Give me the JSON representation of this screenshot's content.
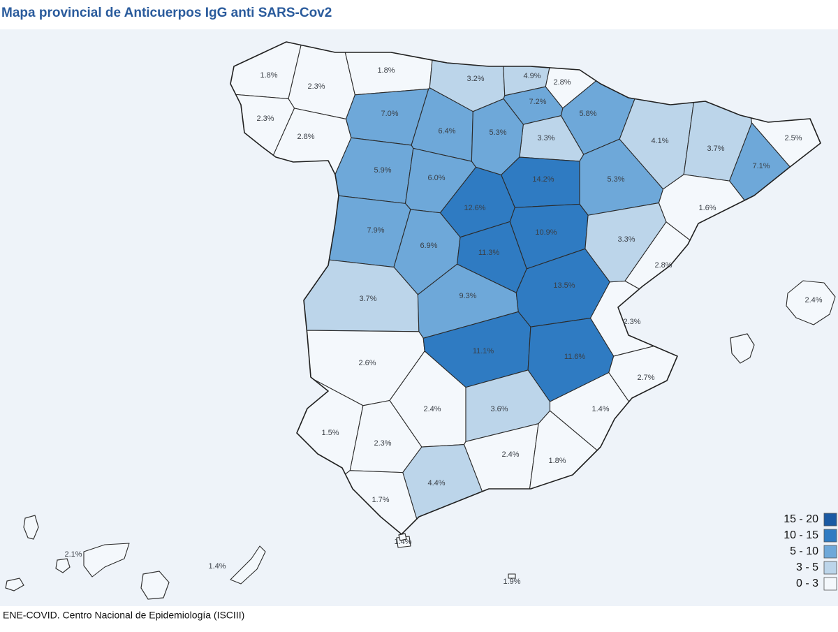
{
  "title": "Mapa provincial de Anticuerpos IgG anti SARS-Cov2",
  "source": "ENE-COVID. Centro Nacional de Epidemiología (ISCIII)",
  "provinces": [
    {
      "label": "1.8%",
      "color": "#f4f8fc"
    },
    {
      "label": "2.3%",
      "color": "#f4f8fc"
    },
    {
      "label": "2.3%",
      "color": "#f4f8fc"
    },
    {
      "label": "2.8%",
      "color": "#f4f8fc"
    },
    {
      "label": "1.8%",
      "color": "#f4f8fc"
    },
    {
      "label": "3.2%",
      "color": "#bcd5ea"
    },
    {
      "label": "4.9%",
      "color": "#bcd5ea"
    },
    {
      "label": "2.8%",
      "color": "#f4f8fc"
    },
    {
      "label": "7.2%",
      "color": "#6ea8d9"
    },
    {
      "label": "5.8%",
      "color": "#6ea8d9"
    },
    {
      "label": "3.3%",
      "color": "#bcd5ea"
    },
    {
      "label": "7.0%",
      "color": "#6ea8d9"
    },
    {
      "label": "6.4%",
      "color": "#6ea8d9"
    },
    {
      "label": "5.3%",
      "color": "#6ea8d9"
    },
    {
      "label": "4.1%",
      "color": "#bcd5ea"
    },
    {
      "label": "3.7%",
      "color": "#bcd5ea"
    },
    {
      "label": "2.5%",
      "color": "#f4f8fc"
    },
    {
      "label": "7.1%",
      "color": "#6ea8d9"
    },
    {
      "label": "5.9%",
      "color": "#6ea8d9"
    },
    {
      "label": "6.0%",
      "color": "#6ea8d9"
    },
    {
      "label": "14.2%",
      "color": "#2f7bc2"
    },
    {
      "label": "5.3%",
      "color": "#6ea8d9"
    },
    {
      "label": "1.6%",
      "color": "#f4f8fc"
    },
    {
      "label": "7.9%",
      "color": "#6ea8d9"
    },
    {
      "label": "12.6%",
      "color": "#2f7bc2"
    },
    {
      "label": "6.9%",
      "color": "#6ea8d9"
    },
    {
      "label": "11.3%",
      "color": "#2f7bc2"
    },
    {
      "label": "10.9%",
      "color": "#2f7bc2"
    },
    {
      "label": "3.3%",
      "color": "#bcd5ea"
    },
    {
      "label": "2.8%",
      "color": "#f4f8fc"
    },
    {
      "label": "3.7%",
      "color": "#bcd5ea"
    },
    {
      "label": "9.3%",
      "color": "#6ea8d9"
    },
    {
      "label": "13.5%",
      "color": "#2f7bc2"
    },
    {
      "label": "2.3%",
      "color": "#f4f8fc"
    },
    {
      "label": "2.6%",
      "color": "#f4f8fc"
    },
    {
      "label": "11.1%",
      "color": "#2f7bc2"
    },
    {
      "label": "11.6%",
      "color": "#2f7bc2"
    },
    {
      "label": "2.7%",
      "color": "#f4f8fc"
    },
    {
      "label": "1.5%",
      "color": "#f4f8fc"
    },
    {
      "label": "2.4%",
      "color": "#f4f8fc"
    },
    {
      "label": "3.6%",
      "color": "#bcd5ea"
    },
    {
      "label": "1.4%",
      "color": "#f4f8fc"
    },
    {
      "label": "2.3%",
      "color": "#f4f8fc"
    },
    {
      "label": "2.4%",
      "color": "#f4f8fc"
    },
    {
      "label": "1.8%",
      "color": "#f4f8fc"
    },
    {
      "label": "4.4%",
      "color": "#bcd5ea"
    },
    {
      "label": "1.7%",
      "color": "#f4f8fc"
    },
    {
      "label": "2.4%",
      "color": "#f4f8fc"
    },
    {
      "label": "1.4%",
      "color": "#f4f8fc"
    },
    {
      "label": "2.1%",
      "color": "#f4f8fc"
    },
    {
      "label": "1.4%",
      "color": "#f4f8fc"
    },
    {
      "label": "1.9%",
      "color": "#f4f8fc"
    }
  ],
  "legend": [
    {
      "label": "15 - 20",
      "color": "#1b5aa3"
    },
    {
      "label": "10 - 15",
      "color": "#2f7bc2"
    },
    {
      "label": "5 - 10",
      "color": "#6ea8d9"
    },
    {
      "label": "3 - 5",
      "color": "#bcd5ea"
    },
    {
      "label": "0 - 3",
      "color": "#f4f8fc"
    }
  ]
}
